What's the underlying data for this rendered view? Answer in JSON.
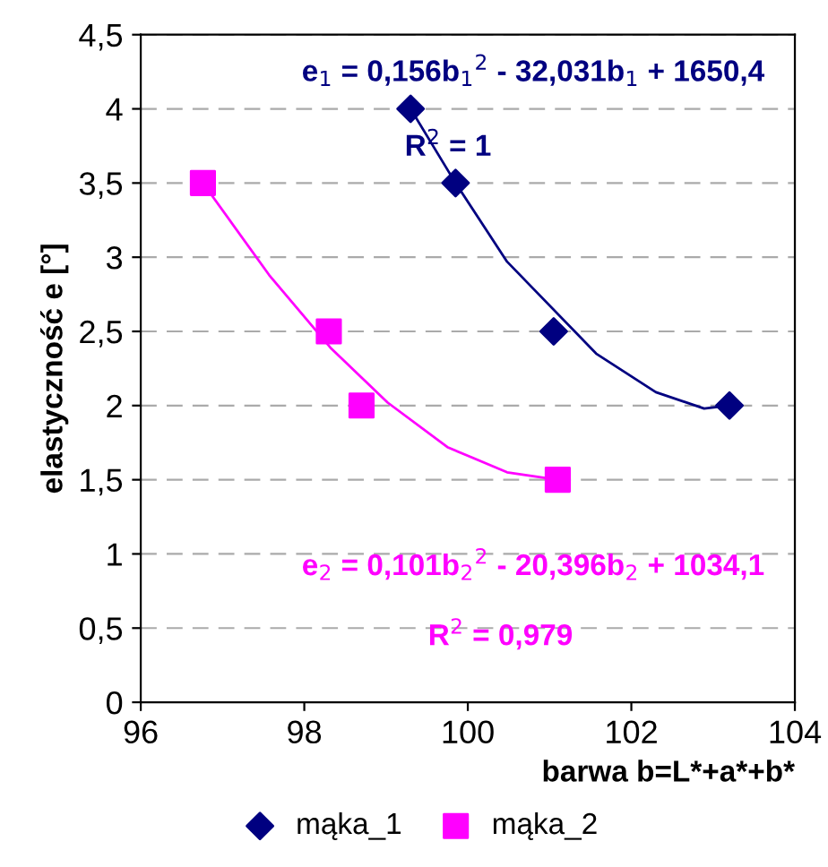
{
  "chart_data": {
    "type": "scatter",
    "xlabel": "barwa b=L*+a*+b*",
    "ylabel": "elastyczność e [°]",
    "xlim": [
      96,
      104
    ],
    "xticks": [
      96,
      98,
      100,
      102,
      104
    ],
    "ylim": [
      0,
      4.5
    ],
    "yticks": [
      0,
      {
        "value": 0.5,
        "label": "0,5"
      },
      1,
      {
        "value": 1.5,
        "label": "1,5"
      },
      2,
      {
        "value": 2.5,
        "label": "2,5"
      },
      3,
      {
        "value": 3.5,
        "label": "3,5"
      },
      4,
      {
        "value": 4.5,
        "label": "4,5"
      }
    ],
    "grid": "y",
    "legend": "bottom",
    "series": [
      {
        "name": "mąka_1",
        "color": "#000080",
        "marker": "diamond",
        "x": [
          99.3,
          99.85,
          101.05,
          103.2
        ],
        "values": [
          4,
          3.5,
          2.5,
          2
        ]
      },
      {
        "name": "mąka_2",
        "color": "#ff00ff",
        "marker": "square",
        "x": [
          96.76,
          98.3,
          98.7,
          101.1
        ],
        "values": [
          3.5,
          2.5,
          2,
          1.5
        ]
      },
      {
        "type": "line",
        "color": "#000080",
        "marker": "none",
        "x": [
          99.3,
          99.85,
          100.48,
          101.57,
          102.3,
          102.89,
          103.2
        ],
        "values": [
          4,
          3.5,
          2.97,
          2.35,
          2.09,
          1.98,
          2
        ]
      },
      {
        "type": "line",
        "color": "#ff00ff",
        "marker": "none",
        "x": [
          96.76,
          97.57,
          98.32,
          99.02,
          99.75,
          100.48,
          101.1
        ],
        "values": [
          3.5,
          2.88,
          2.39,
          2.02,
          1.72,
          1.55,
          1.5
        ]
      }
    ],
    "annotations": [
      "e$_{1}$ = 0,156b$_{1}$$^{2}$ - 32,031b$_{1}$ + 1650,4",
      "R$^{2}$ = 1",
      "e$_{2}$ = 0,101b$_{2}$$^{2}$ - 20,396b$_{2}$ + 1034,1",
      "R$^{2}$ = 0,979"
    ]
  }
}
